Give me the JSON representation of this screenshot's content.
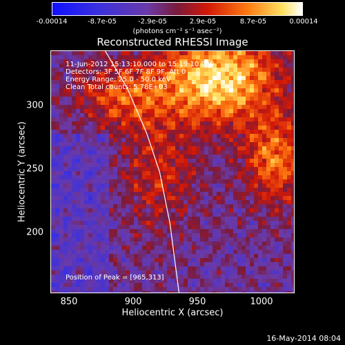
{
  "chart_data": {
    "type": "heatmap",
    "title": "Reconstructed RHESSI Image",
    "xlabel": "Heliocentric X (arcsec)",
    "ylabel": "Heliocentric Y (arcsec)",
    "xlim": [
      836,
      1024
    ],
    "ylim": [
      146,
      334
    ],
    "xticks": [
      "850",
      "900",
      "950",
      "1000"
    ],
    "yticks": [
      "200",
      "250",
      "300"
    ],
    "colorbar": {
      "ticks": [
        "-0.00014",
        "-8.7e-05",
        "-2.9e-05",
        "2.9e-05",
        "8.7e-05",
        "0.00014"
      ],
      "unit_label": "(photons cm⁻² s⁻¹ asec⁻²)",
      "range": [
        -0.00014,
        0.00014
      ]
    },
    "annotations": {
      "time": "11-Jun-2012 15:13:10.000 to 15:19:10.000",
      "detectors": "Detectors: 3F 5F 6F 7F 8F 9F, Att 0",
      "energy": "Energy Range: 25.0 - 50.0 keV",
      "clean": "Clean    Total counts: 5.78E+03",
      "peak": "Position of Peak = [965,313]"
    },
    "peak": [
      965,
      313
    ],
    "limb_curve": [
      [
        878,
        334
      ],
      [
        895,
        305
      ],
      [
        910,
        270
      ],
      [
        920,
        240
      ],
      [
        928,
        200
      ],
      [
        935,
        146
      ]
    ]
  },
  "footer": {
    "timestamp": "16-May-2014 08:04"
  }
}
